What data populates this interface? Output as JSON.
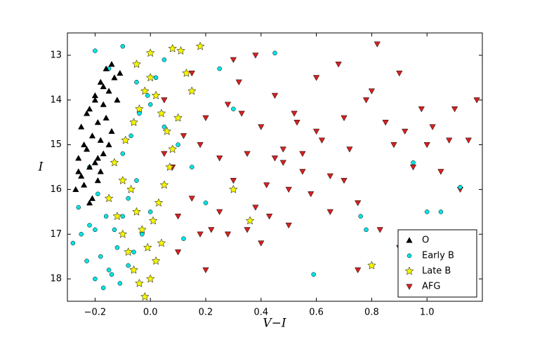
{
  "chart_data": {
    "type": "scatter",
    "x_label": "V−I",
    "y_label": "I",
    "xlim": [
      -0.3,
      1.2
    ],
    "ylim": [
      12.5,
      18.5
    ],
    "y_inverted": true,
    "xticks": [
      {
        "value": -0.2,
        "label": "−0.2"
      },
      {
        "value": 0,
        "label": "0.0"
      },
      0.2,
      0.4,
      0.6,
      0.8,
      {
        "value": 1,
        "label": "1.0"
      }
    ],
    "yticks": [
      13,
      14,
      15,
      16,
      17,
      18
    ],
    "grid": false,
    "legend": "lower right",
    "series": [
      {
        "name": "O",
        "color": "#000000",
        "marker": "triangle-up",
        "x": [
          -0.25,
          -0.22,
          -0.2,
          -0.18,
          -0.16,
          -0.14,
          -0.24,
          -0.21,
          -0.19,
          -0.17,
          -0.15,
          -0.13,
          -0.26,
          -0.23,
          -0.2,
          -0.18,
          -0.16,
          -0.12,
          -0.25,
          -0.22,
          -0.19,
          -0.17,
          -0.14,
          -0.27,
          -0.24,
          -0.21,
          -0.18,
          -0.15,
          -0.23,
          -0.2,
          -0.17,
          -0.26,
          -0.22,
          -0.19,
          -0.11
        ],
        "values": [
          14.6,
          14.2,
          13.9,
          13.6,
          13.3,
          13.2,
          15.0,
          14.8,
          14.5,
          14.1,
          13.8,
          13.5,
          15.3,
          15.1,
          15.4,
          14.9,
          14.4,
          14.0,
          15.7,
          15.5,
          15.8,
          15.2,
          14.7,
          16.0,
          15.9,
          16.2,
          15.6,
          15.0,
          14.3,
          14.0,
          13.7,
          15.6,
          16.3,
          15.3,
          13.4
        ]
      },
      {
        "name": "Early B",
        "color": "#00e5e5",
        "marker": "circle",
        "x": [
          -0.28,
          -0.25,
          -0.22,
          -0.2,
          -0.18,
          -0.15,
          -0.12,
          -0.1,
          -0.08,
          -0.05,
          -0.26,
          -0.23,
          -0.2,
          -0.17,
          -0.14,
          -0.11,
          -0.08,
          -0.06,
          -0.03,
          0.0,
          -0.22,
          -0.19,
          -0.16,
          -0.13,
          -0.1,
          -0.07,
          -0.04,
          -0.01,
          0.02,
          0.05,
          -0.2,
          -0.15,
          -0.1,
          -0.05,
          0.0,
          0.05,
          0.1,
          0.15,
          0.2,
          0.12,
          0.25,
          0.3,
          0.45,
          0.59,
          0.76,
          0.78,
          0.95,
          1.0,
          1.05,
          1.12
        ],
        "values": [
          17.2,
          17.0,
          16.8,
          16.9,
          17.5,
          17.8,
          17.3,
          16.6,
          16.2,
          15.8,
          16.4,
          17.6,
          18.0,
          18.2,
          17.9,
          18.1,
          17.7,
          17.4,
          17.0,
          16.5,
          15.5,
          16.1,
          16.6,
          16.9,
          15.2,
          14.8,
          14.3,
          13.9,
          13.5,
          13.1,
          12.9,
          13.3,
          12.8,
          13.6,
          14.1,
          14.6,
          15.0,
          15.5,
          16.3,
          17.1,
          13.3,
          14.2,
          12.95,
          17.9,
          16.6,
          16.9,
          15.4,
          16.5,
          16.5,
          15.95
        ]
      },
      {
        "name": "Late B",
        "color": "#f5f500",
        "marker": "star",
        "x": [
          -0.15,
          -0.12,
          -0.1,
          -0.08,
          -0.06,
          -0.04,
          -0.02,
          0.0,
          0.02,
          0.04,
          -0.13,
          -0.1,
          -0.07,
          -0.05,
          -0.03,
          -0.01,
          0.01,
          0.03,
          0.05,
          0.07,
          -0.09,
          -0.06,
          -0.04,
          -0.02,
          0.0,
          0.02,
          0.04,
          0.06,
          0.08,
          0.1,
          0.08,
          0.11,
          0.13,
          0.15,
          0.18,
          -0.05,
          0.0,
          0.3,
          0.36,
          0.8
        ],
        "values": [
          16.2,
          16.6,
          17.0,
          17.4,
          17.8,
          18.1,
          18.4,
          18.0,
          17.6,
          17.2,
          15.4,
          15.8,
          16.0,
          16.5,
          16.9,
          17.3,
          16.7,
          16.3,
          15.9,
          15.5,
          14.9,
          14.5,
          14.2,
          13.8,
          13.5,
          13.9,
          14.3,
          14.7,
          15.1,
          14.4,
          12.85,
          12.9,
          13.4,
          13.8,
          12.8,
          13.2,
          12.95,
          16.0,
          16.7,
          17.7
        ]
      },
      {
        "name": "AFG",
        "color": "#d62020",
        "marker": "triangle-down",
        "x": [
          0.05,
          0.08,
          0.1,
          0.12,
          0.15,
          0.18,
          0.2,
          0.22,
          0.25,
          0.28,
          0.3,
          0.32,
          0.35,
          0.38,
          0.4,
          0.42,
          0.45,
          0.48,
          0.5,
          0.52,
          0.55,
          0.58,
          0.6,
          0.62,
          0.65,
          0.68,
          0.7,
          0.72,
          0.75,
          0.78,
          0.8,
          0.82,
          0.85,
          0.88,
          0.9,
          0.92,
          0.95,
          0.98,
          1.0,
          1.02,
          1.05,
          1.08,
          1.1,
          1.12,
          1.15,
          1.18,
          0.83,
          0.2,
          0.25,
          0.3,
          0.35,
          0.4,
          0.45,
          0.1,
          0.15,
          0.5,
          0.55,
          0.6,
          0.65,
          0.7,
          0.28,
          0.33,
          0.38,
          0.43,
          0.48,
          0.53,
          0.9,
          0.75,
          0.18,
          0.05
        ],
        "values": [
          14.0,
          15.5,
          16.6,
          14.8,
          16.2,
          15.0,
          14.4,
          16.9,
          15.3,
          14.1,
          15.8,
          13.6,
          15.2,
          16.4,
          14.6,
          15.9,
          13.9,
          15.4,
          16.8,
          14.3,
          15.6,
          16.1,
          13.5,
          14.9,
          15.7,
          13.2,
          14.4,
          15.1,
          16.3,
          14.0,
          13.8,
          12.75,
          14.5,
          15.0,
          13.4,
          14.7,
          15.5,
          14.2,
          15.0,
          14.6,
          15.6,
          14.9,
          14.2,
          16.0,
          14.9,
          14.0,
          16.9,
          17.8,
          16.5,
          13.1,
          16.9,
          17.2,
          15.3,
          17.4,
          13.4,
          16.0,
          15.2,
          14.7,
          16.5,
          15.8,
          17.0,
          14.3,
          13.0,
          16.6,
          15.1,
          14.5,
          17.3,
          17.8,
          17.0,
          15.2
        ]
      }
    ]
  }
}
